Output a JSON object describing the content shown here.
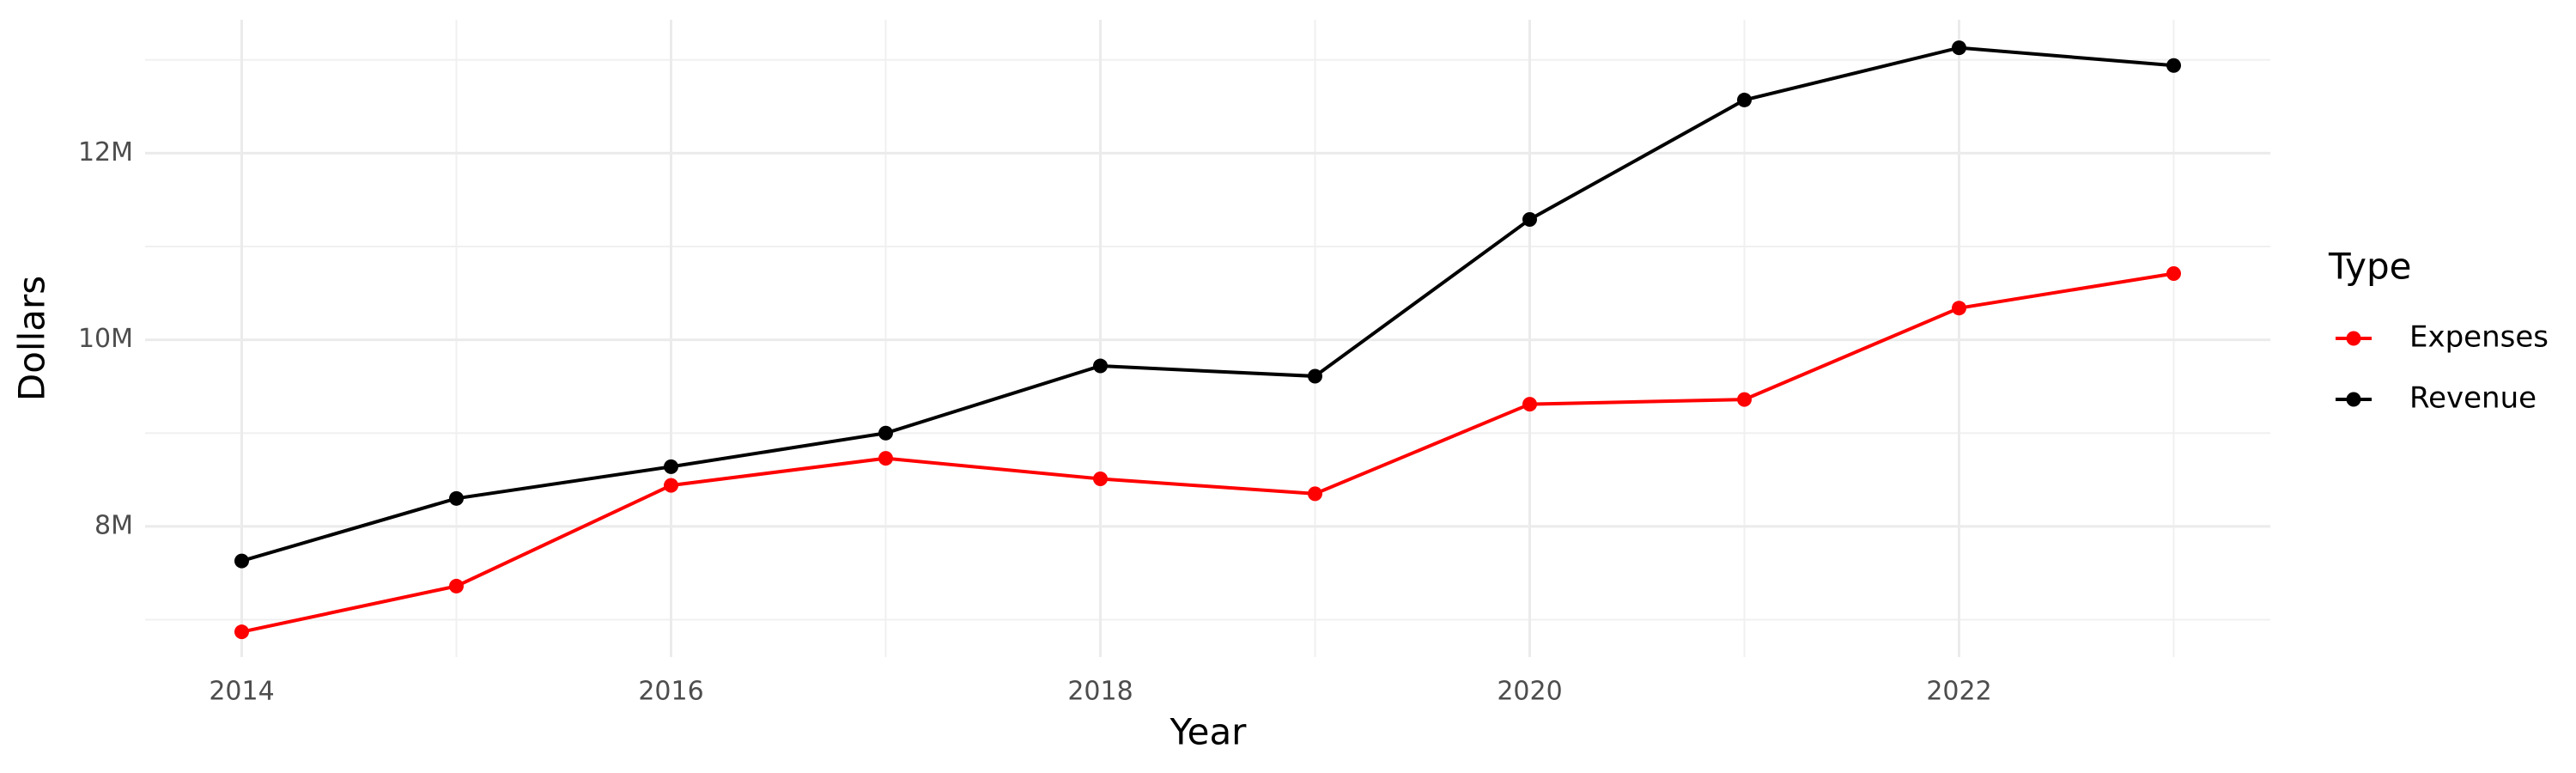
{
  "chart_data": {
    "type": "line",
    "x_label": "Year",
    "y_label": "Dollars",
    "legend_title": "Type",
    "x": [
      2014,
      2015,
      2016,
      2017,
      2018,
      2019,
      2020,
      2021,
      2022,
      2023
    ],
    "series": [
      {
        "name": "Expenses",
        "color": "#ff0000",
        "values": [
          6870000,
          7360000,
          8440000,
          8730000,
          8510000,
          8350000,
          9310000,
          9360000,
          10340000,
          10710000
        ]
      },
      {
        "name": "Revenue",
        "color": "#000000",
        "values": [
          7630000,
          8300000,
          8640000,
          9000000,
          9720000,
          9610000,
          11290000,
          12570000,
          13130000,
          12940000
        ]
      }
    ],
    "xlim": [
      2013.55,
      2023.45
    ],
    "xticks": [
      2014,
      2016,
      2018,
      2020,
      2022
    ],
    "ylim": [
      6600000,
      13430000
    ],
    "yticks": [
      {
        "value": 8000000,
        "label": "8M"
      },
      {
        "value": 10000000,
        "label": "10M"
      },
      {
        "value": 12000000,
        "label": "12M"
      }
    ],
    "grid": true,
    "legend": "right"
  }
}
